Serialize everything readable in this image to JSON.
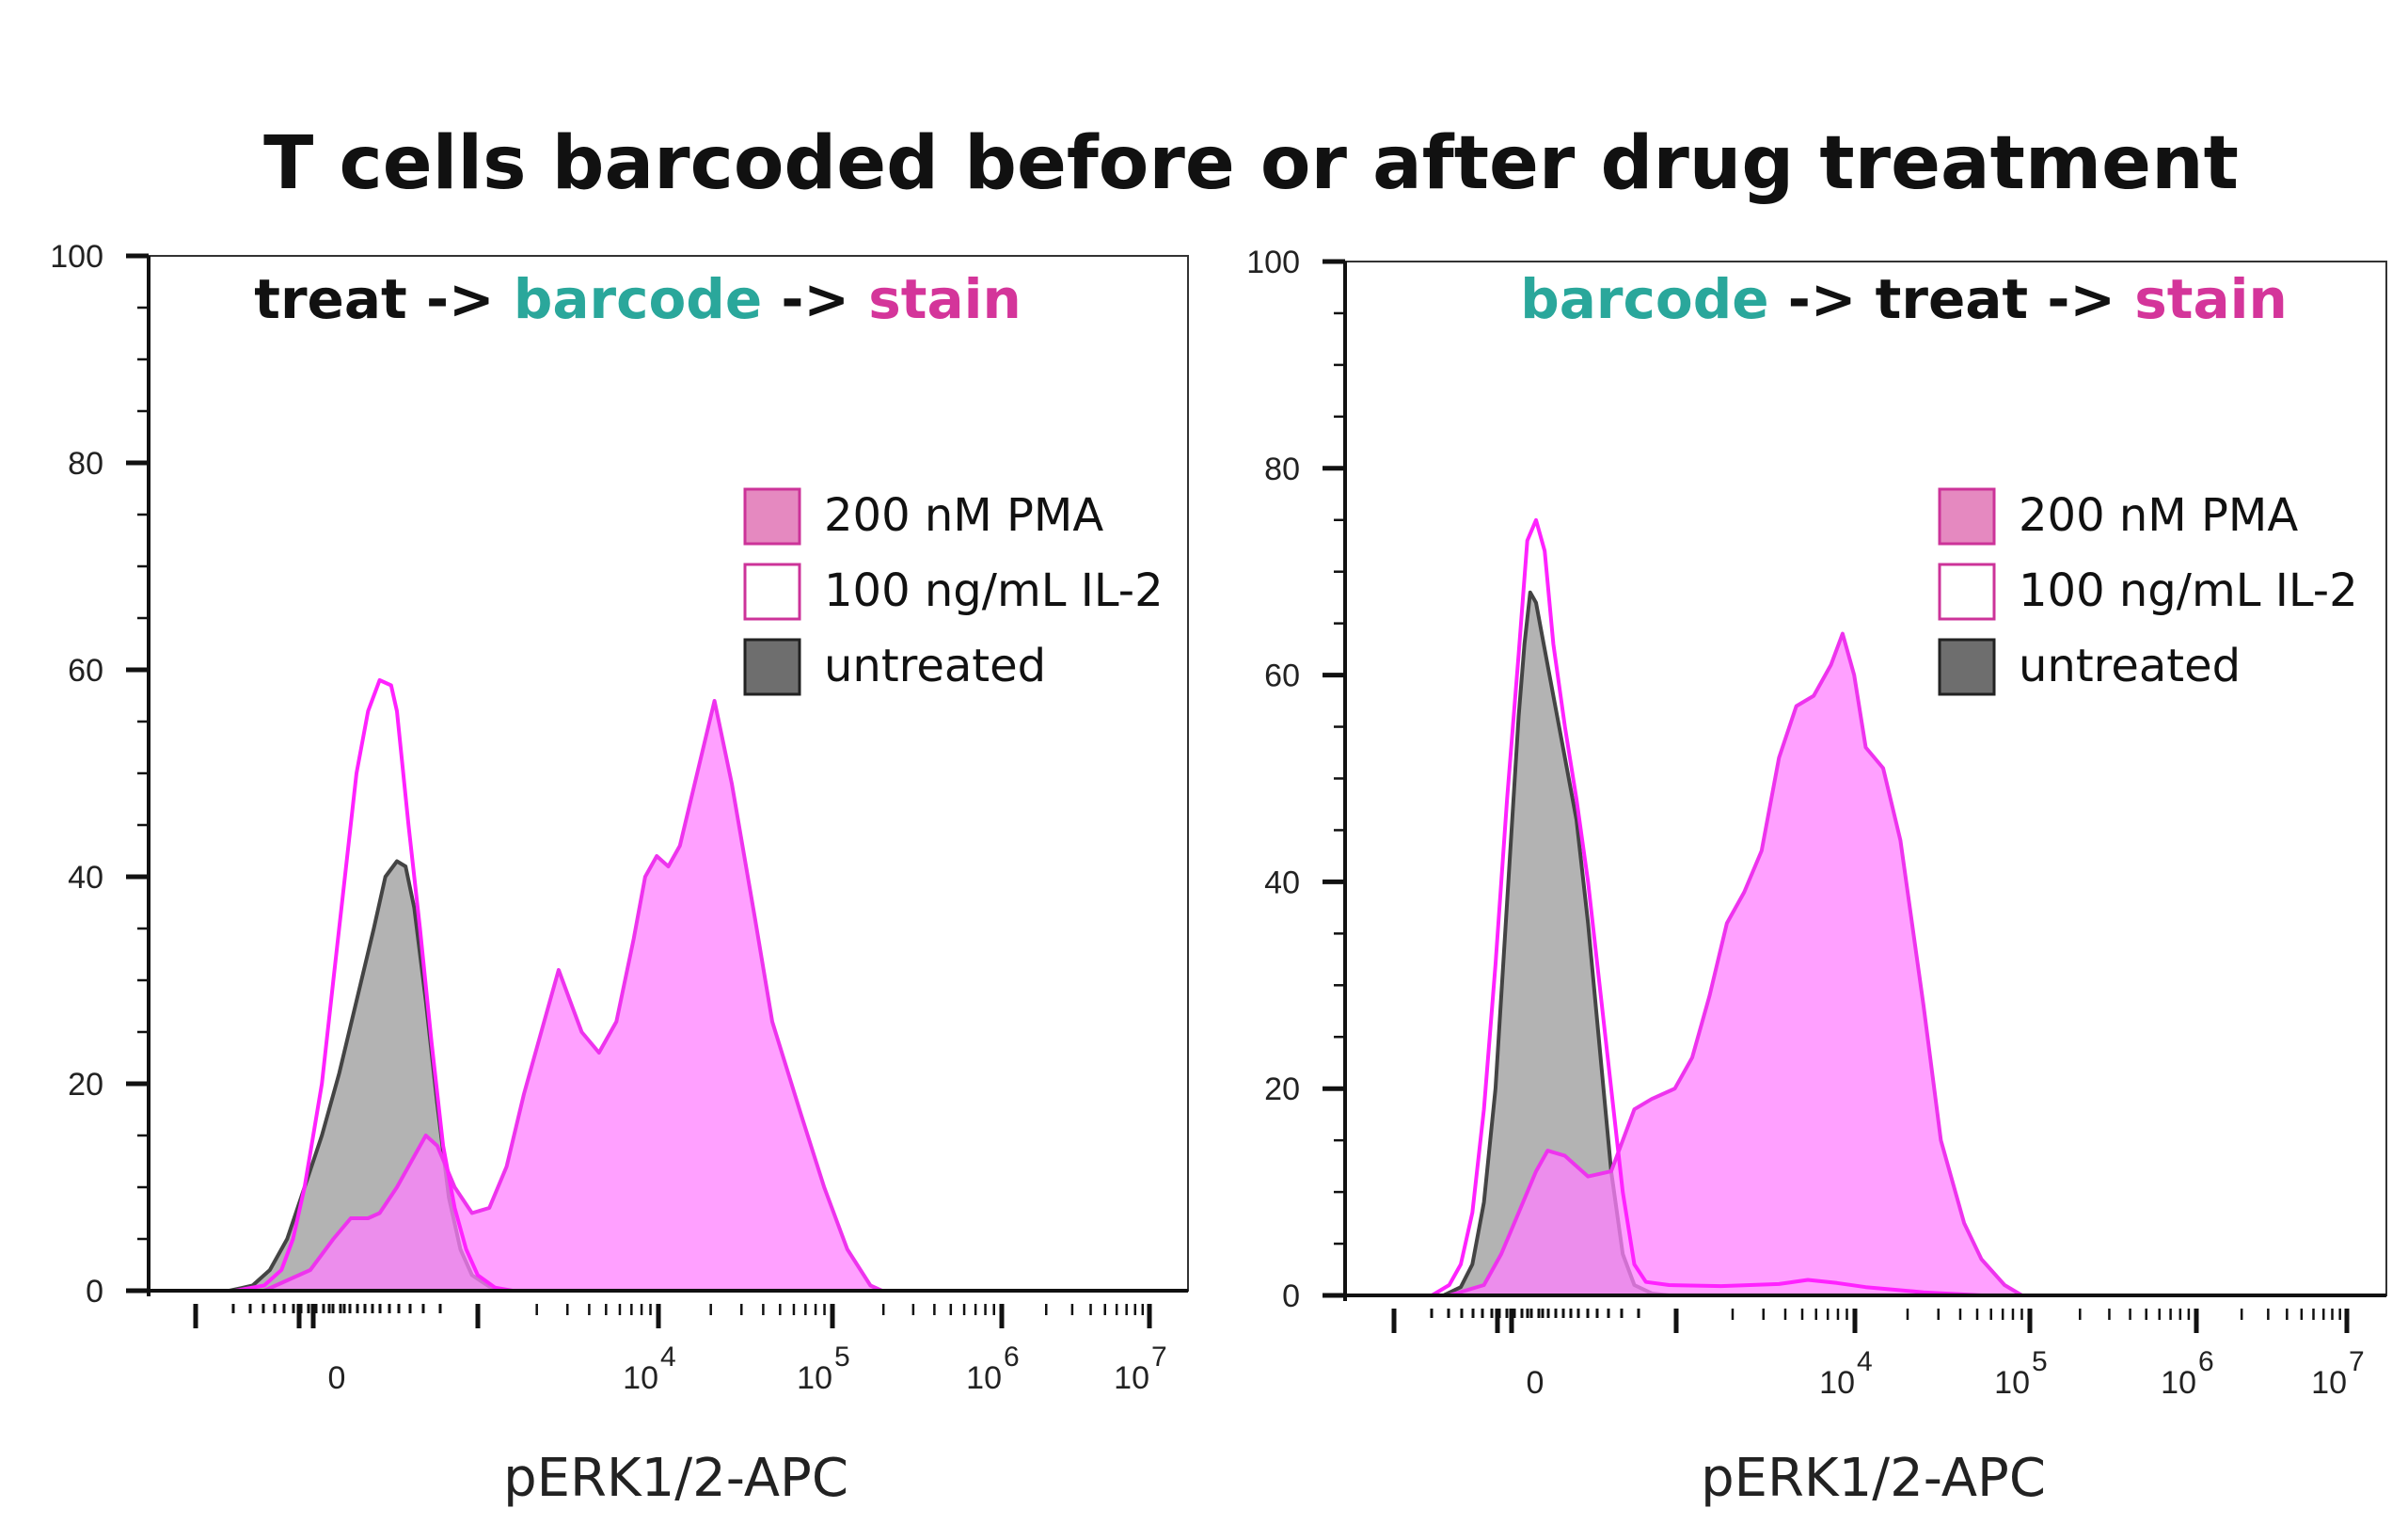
{
  "figure_title": "T cells barcoded before or after drug treatment",
  "colors": {
    "pma_fill": "#ff80ff",
    "pma_stroke": "#ee33ee",
    "il2_stroke": "#ff22ff",
    "untreated_fill": "#9a9a9a",
    "untreated_stroke": "#444444",
    "barcode_text": "#2aa79b",
    "stain_text": "#d4359a",
    "treat_text": "#111111"
  },
  "chart_data": [
    {
      "type": "area",
      "heading": [
        {
          "text": "treat",
          "color": "#111111"
        },
        {
          "text": " -> ",
          "color": "#111111"
        },
        {
          "text": "barcode",
          "color": "#2aa79b"
        },
        {
          "text": " -> ",
          "color": "#111111"
        },
        {
          "text": "stain",
          "color": "#d4359a"
        }
      ],
      "xlabel": "pERK1/2-APC",
      "ylim": [
        0,
        100
      ],
      "yticks": [
        "0",
        "20",
        "40",
        "60",
        "80",
        "100"
      ],
      "xticks": [
        {
          "base": "0",
          "exp": ""
        },
        {
          "base": "10",
          "exp": "4"
        },
        {
          "base": "10",
          "exp": "5"
        },
        {
          "base": "10",
          "exp": "6"
        },
        {
          "base": "10",
          "exp": "7"
        }
      ],
      "legend": [
        "200 nM PMA",
        "100 ng/mL IL-2",
        "untreated"
      ],
      "series": [
        {
          "name": "200 nM PMA",
          "style": "pma",
          "points": [
            [
              -3.0,
              0
            ],
            [
              -1.0,
              0
            ],
            [
              -0.2,
              2
            ],
            [
              0.2,
              5
            ],
            [
              0.5,
              7
            ],
            [
              0.8,
              7
            ],
            [
              1.0,
              7.5
            ],
            [
              1.3,
              10
            ],
            [
              1.6,
              13
            ],
            [
              1.8,
              15
            ],
            [
              2.0,
              14
            ],
            [
              2.3,
              10
            ],
            [
              2.6,
              7.5
            ],
            [
              2.9,
              8
            ],
            [
              3.2,
              12
            ],
            [
              3.5,
              19
            ],
            [
              3.8,
              25
            ],
            [
              4.1,
              31
            ],
            [
              4.3,
              28
            ],
            [
              4.5,
              25
            ],
            [
              4.8,
              23
            ],
            [
              5.1,
              26
            ],
            [
              5.4,
              34
            ],
            [
              5.6,
              40
            ],
            [
              5.8,
              42
            ],
            [
              6.0,
              41
            ],
            [
              6.2,
              43
            ],
            [
              6.5,
              50
            ],
            [
              6.8,
              57
            ],
            [
              7.1,
              49
            ],
            [
              7.5,
              36
            ],
            [
              7.8,
              26
            ],
            [
              8.3,
              17
            ],
            [
              8.7,
              10
            ],
            [
              9.1,
              4
            ],
            [
              9.5,
              0.5
            ],
            [
              9.7,
              0
            ],
            [
              15.0,
              0
            ]
          ]
        },
        {
          "name": "100 ng/mL IL-2",
          "style": "il2",
          "points": [
            [
              -3.0,
              0
            ],
            [
              -1.5,
              0
            ],
            [
              -1.0,
              0.5
            ],
            [
              -0.7,
              2
            ],
            [
              -0.5,
              5
            ],
            [
              -0.3,
              10
            ],
            [
              0.0,
              20
            ],
            [
              0.2,
              30
            ],
            [
              0.4,
              40
            ],
            [
              0.6,
              50
            ],
            [
              0.8,
              56
            ],
            [
              1.0,
              59
            ],
            [
              1.2,
              58.5
            ],
            [
              1.3,
              56
            ],
            [
              1.5,
              45
            ],
            [
              1.7,
              35
            ],
            [
              1.9,
              24
            ],
            [
              2.1,
              14
            ],
            [
              2.3,
              8
            ],
            [
              2.5,
              4
            ],
            [
              2.7,
              1.5
            ],
            [
              3.0,
              0.3
            ],
            [
              3.3,
              0
            ],
            [
              15.0,
              0
            ]
          ]
        },
        {
          "name": "untreated",
          "style": "untreated",
          "points": [
            [
              -3.0,
              0
            ],
            [
              -1.6,
              0
            ],
            [
              -1.2,
              0.5
            ],
            [
              -0.9,
              2
            ],
            [
              -0.6,
              5
            ],
            [
              -0.3,
              10
            ],
            [
              0.0,
              15
            ],
            [
              0.3,
              21
            ],
            [
              0.6,
              28
            ],
            [
              0.9,
              35
            ],
            [
              1.1,
              40
            ],
            [
              1.3,
              41.5
            ],
            [
              1.45,
              41
            ],
            [
              1.6,
              37
            ],
            [
              1.8,
              28
            ],
            [
              2.0,
              18
            ],
            [
              2.2,
              9
            ],
            [
              2.4,
              4
            ],
            [
              2.6,
              1.5
            ],
            [
              2.9,
              0.4
            ],
            [
              3.2,
              0
            ],
            [
              15.0,
              0
            ]
          ]
        }
      ]
    },
    {
      "type": "area",
      "heading": [
        {
          "text": "barcode",
          "color": "#2aa79b"
        },
        {
          "text": " -> ",
          "color": "#111111"
        },
        {
          "text": "treat",
          "color": "#111111"
        },
        {
          "text": " -> ",
          "color": "#111111"
        },
        {
          "text": "stain",
          "color": "#d4359a"
        }
      ],
      "xlabel": "pERK1/2-APC",
      "ylim": [
        0,
        100
      ],
      "yticks": [
        "0",
        "20",
        "40",
        "60",
        "80",
        "100"
      ],
      "xticks": [
        {
          "base": "0",
          "exp": ""
        },
        {
          "base": "10",
          "exp": "4"
        },
        {
          "base": "10",
          "exp": "5"
        },
        {
          "base": "10",
          "exp": "6"
        },
        {
          "base": "10",
          "exp": "7"
        }
      ],
      "legend": [
        "200 nM PMA",
        "100 ng/mL IL-2",
        "untreated"
      ],
      "series": [
        {
          "name": "200 nM PMA",
          "style": "pma",
          "points": [
            [
              -3.0,
              0
            ],
            [
              -1.2,
              0
            ],
            [
              -0.6,
              1
            ],
            [
              -0.3,
              4
            ],
            [
              0.0,
              8
            ],
            [
              0.3,
              12
            ],
            [
              0.5,
              14
            ],
            [
              0.8,
              13.5
            ],
            [
              1.2,
              11.5
            ],
            [
              1.6,
              12
            ],
            [
              1.8,
              15
            ],
            [
              2.0,
              18
            ],
            [
              2.3,
              19
            ],
            [
              2.7,
              20
            ],
            [
              3.0,
              23
            ],
            [
              3.3,
              29
            ],
            [
              3.6,
              36
            ],
            [
              3.9,
              39
            ],
            [
              4.2,
              43
            ],
            [
              4.5,
              52
            ],
            [
              4.8,
              57
            ],
            [
              5.1,
              58
            ],
            [
              5.4,
              61
            ],
            [
              5.6,
              64
            ],
            [
              5.8,
              60
            ],
            [
              6.0,
              53
            ],
            [
              6.3,
              51
            ],
            [
              6.6,
              44
            ],
            [
              7.0,
              28
            ],
            [
              7.3,
              15
            ],
            [
              7.7,
              7
            ],
            [
              8.0,
              3.5
            ],
            [
              8.4,
              1
            ],
            [
              8.7,
              0
            ],
            [
              15.0,
              0
            ]
          ]
        },
        {
          "name": "100 ng/mL IL-2",
          "style": "il2",
          "points": [
            [
              -3.0,
              0
            ],
            [
              -1.5,
              0
            ],
            [
              -1.2,
              1
            ],
            [
              -1.0,
              3
            ],
            [
              -0.8,
              8
            ],
            [
              -0.6,
              18
            ],
            [
              -0.4,
              32
            ],
            [
              -0.2,
              48
            ],
            [
              0.0,
              62
            ],
            [
              0.15,
              73
            ],
            [
              0.3,
              75
            ],
            [
              0.45,
              72
            ],
            [
              0.6,
              63
            ],
            [
              0.8,
              55
            ],
            [
              1.0,
              48
            ],
            [
              1.2,
              40
            ],
            [
              1.4,
              30
            ],
            [
              1.6,
              20
            ],
            [
              1.8,
              10
            ],
            [
              2.0,
              3
            ],
            [
              2.2,
              1.3
            ],
            [
              2.6,
              1
            ],
            [
              3.5,
              0.9
            ],
            [
              4.5,
              1.1
            ],
            [
              5.0,
              1.5
            ],
            [
              5.5,
              1.2
            ],
            [
              6.0,
              0.8
            ],
            [
              7.0,
              0.3
            ],
            [
              8.0,
              0
            ],
            [
              15.0,
              0
            ]
          ]
        },
        {
          "name": "untreated",
          "style": "untreated",
          "points": [
            [
              -3.0,
              0
            ],
            [
              -1.3,
              0
            ],
            [
              -1.0,
              0.8
            ],
            [
              -0.8,
              3
            ],
            [
              -0.6,
              9
            ],
            [
              -0.4,
              20
            ],
            [
              -0.2,
              38
            ],
            [
              0.0,
              56
            ],
            [
              0.1,
              63
            ],
            [
              0.2,
              68
            ],
            [
              0.3,
              67
            ],
            [
              0.4,
              64
            ],
            [
              0.6,
              58
            ],
            [
              0.8,
              52
            ],
            [
              1.0,
              46
            ],
            [
              1.2,
              36
            ],
            [
              1.4,
              24
            ],
            [
              1.6,
              12
            ],
            [
              1.8,
              4
            ],
            [
              2.0,
              1
            ],
            [
              2.3,
              0.2
            ],
            [
              2.6,
              0
            ],
            [
              15.0,
              0
            ]
          ]
        }
      ]
    }
  ]
}
